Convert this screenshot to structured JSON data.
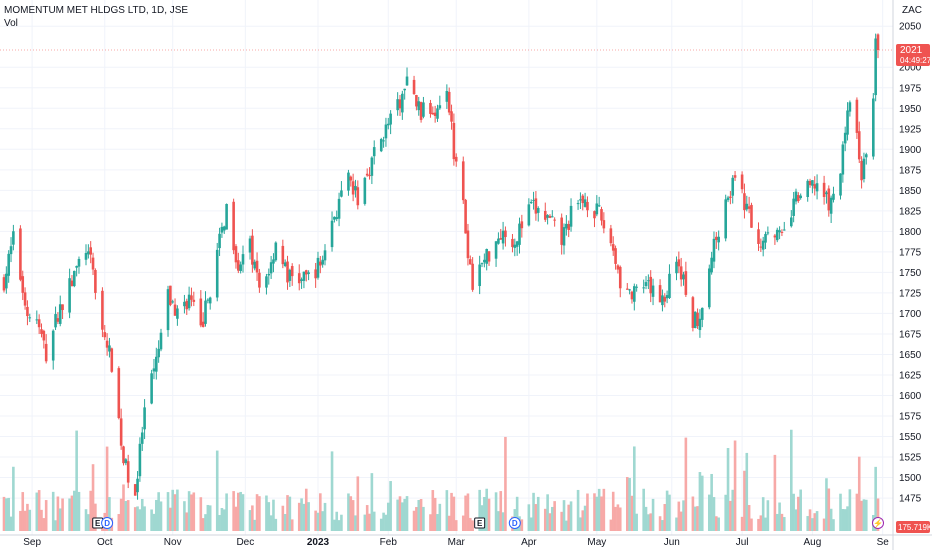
{
  "header": {
    "title": "MOMENTUM MET HLDGS LTD, 1D, JSE",
    "indicator": "Vol",
    "currency": "ZAC"
  },
  "price_badge": {
    "price": "2021",
    "countdown": "04:49:27"
  },
  "volume_badge": {
    "value": "175.719K"
  },
  "event_markers": [
    {
      "label": "E",
      "kind": "earnings",
      "date": "2022-10-01"
    },
    {
      "label": "D",
      "kind": "dividend",
      "date": "2022-10-05"
    },
    {
      "label": "E",
      "kind": "earnings",
      "date": "2023-03-13"
    },
    {
      "label": "D",
      "kind": "dividend",
      "date": "2023-03-28"
    },
    {
      "label": "⚡",
      "kind": "split",
      "date": "2023-08-30"
    }
  ],
  "colors": {
    "up": "#26a69a",
    "down": "#ef5350",
    "up_volume": "#9fd8d1",
    "down_volume": "#f7a9a7",
    "grid": "#f0f3fa",
    "text": "#131722",
    "price_line": "#ef5350"
  },
  "chart_data": {
    "type": "candlestick",
    "title": "MOMENTUM MET HLDGS LTD, 1D, JSE",
    "x_axis": {
      "ticks": [
        "Sep",
        "Oct",
        "Nov",
        "Dec",
        "2023",
        "Feb",
        "Mar",
        "Apr",
        "May",
        "Jun",
        "Jul",
        "Aug",
        "Se"
      ]
    },
    "y_axis": {
      "position": "right",
      "ticks": [
        1475,
        1500,
        1525,
        1550,
        1575,
        1600,
        1625,
        1650,
        1675,
        1700,
        1725,
        1750,
        1775,
        1800,
        1825,
        1850,
        1875,
        1900,
        1925,
        1950,
        1975,
        2000,
        2050
      ],
      "range": [
        1430,
        2060
      ]
    },
    "grid": true,
    "last_price": 2021,
    "anchors": [
      {
        "d": "2022-08-22",
        "p": 1740
      },
      {
        "d": "2022-08-26",
        "p": 1790
      },
      {
        "d": "2022-09-01",
        "p": 1700
      },
      {
        "d": "2022-09-05",
        "p": 1690
      },
      {
        "d": "2022-09-09",
        "p": 1650
      },
      {
        "d": "2022-09-14",
        "p": 1700
      },
      {
        "d": "2022-09-20",
        "p": 1740
      },
      {
        "d": "2022-09-26",
        "p": 1780
      },
      {
        "d": "2022-09-29",
        "p": 1750
      },
      {
        "d": "2022-10-03",
        "p": 1680
      },
      {
        "d": "2022-10-07",
        "p": 1640
      },
      {
        "d": "2022-10-10",
        "p": 1570
      },
      {
        "d": "2022-10-12",
        "p": 1520
      },
      {
        "d": "2022-10-17",
        "p": 1480
      },
      {
        "d": "2022-10-21",
        "p": 1580
      },
      {
        "d": "2022-10-26",
        "p": 1640
      },
      {
        "d": "2022-10-31",
        "p": 1720
      },
      {
        "d": "2022-11-04",
        "p": 1700
      },
      {
        "d": "2022-11-09",
        "p": 1720
      },
      {
        "d": "2022-11-14",
        "p": 1680
      },
      {
        "d": "2022-11-18",
        "p": 1730
      },
      {
        "d": "2022-11-23",
        "p": 1800
      },
      {
        "d": "2022-11-25",
        "p": 1830
      },
      {
        "d": "2022-11-30",
        "p": 1760
      },
      {
        "d": "2022-12-05",
        "p": 1780
      },
      {
        "d": "2022-12-09",
        "p": 1730
      },
      {
        "d": "2022-12-14",
        "p": 1760
      },
      {
        "d": "2022-12-16",
        "p": 1790
      },
      {
        "d": "2022-12-21",
        "p": 1745
      },
      {
        "d": "2022-12-28",
        "p": 1740
      },
      {
        "d": "2023-01-04",
        "p": 1760
      },
      {
        "d": "2023-01-10",
        "p": 1820
      },
      {
        "d": "2023-01-16",
        "p": 1860
      },
      {
        "d": "2023-01-20",
        "p": 1840
      },
      {
        "d": "2023-01-25",
        "p": 1880
      },
      {
        "d": "2023-01-31",
        "p": 1920
      },
      {
        "d": "2023-02-06",
        "p": 1950
      },
      {
        "d": "2023-02-10",
        "p": 1980
      },
      {
        "d": "2023-02-16",
        "p": 1945
      },
      {
        "d": "2023-02-22",
        "p": 1950
      },
      {
        "d": "2023-02-27",
        "p": 1980
      },
      {
        "d": "2023-03-02",
        "p": 1900
      },
      {
        "d": "2023-03-06",
        "p": 1850
      },
      {
        "d": "2023-03-08",
        "p": 1760
      },
      {
        "d": "2023-03-10",
        "p": 1740
      },
      {
        "d": "2023-03-16",
        "p": 1770
      },
      {
        "d": "2023-03-22",
        "p": 1800
      },
      {
        "d": "2023-03-28",
        "p": 1790
      },
      {
        "d": "2023-04-04",
        "p": 1830
      },
      {
        "d": "2023-04-11",
        "p": 1815
      },
      {
        "d": "2023-04-17",
        "p": 1790
      },
      {
        "d": "2023-04-21",
        "p": 1820
      },
      {
        "d": "2023-04-27",
        "p": 1840
      },
      {
        "d": "2023-05-03",
        "p": 1820
      },
      {
        "d": "2023-05-09",
        "p": 1780
      },
      {
        "d": "2023-05-12",
        "p": 1740
      },
      {
        "d": "2023-05-17",
        "p": 1720
      },
      {
        "d": "2023-05-23",
        "p": 1730
      },
      {
        "d": "2023-05-31",
        "p": 1720
      },
      {
        "d": "2023-06-05",
        "p": 1770
      },
      {
        "d": "2023-06-08",
        "p": 1740
      },
      {
        "d": "2023-06-12",
        "p": 1690
      },
      {
        "d": "2023-06-15",
        "p": 1700
      },
      {
        "d": "2023-06-20",
        "p": 1770
      },
      {
        "d": "2023-06-26",
        "p": 1840
      },
      {
        "d": "2023-06-30",
        "p": 1860
      },
      {
        "d": "2023-07-05",
        "p": 1830
      },
      {
        "d": "2023-07-10",
        "p": 1780
      },
      {
        "d": "2023-07-14",
        "p": 1810
      },
      {
        "d": "2023-07-20",
        "p": 1790
      },
      {
        "d": "2023-07-26",
        "p": 1840
      },
      {
        "d": "2023-07-31",
        "p": 1850
      },
      {
        "d": "2023-08-04",
        "p": 1860
      },
      {
        "d": "2023-08-09",
        "p": 1830
      },
      {
        "d": "2023-08-14",
        "p": 1870
      },
      {
        "d": "2023-08-17",
        "p": 1955
      },
      {
        "d": "2023-08-21",
        "p": 1920
      },
      {
        "d": "2023-08-23",
        "p": 1870
      },
      {
        "d": "2023-08-25",
        "p": 1900
      },
      {
        "d": "2023-08-28",
        "p": 1955
      },
      {
        "d": "2023-08-29",
        "p": 2030
      },
      {
        "d": "2023-08-30",
        "p": 2021
      }
    ]
  }
}
